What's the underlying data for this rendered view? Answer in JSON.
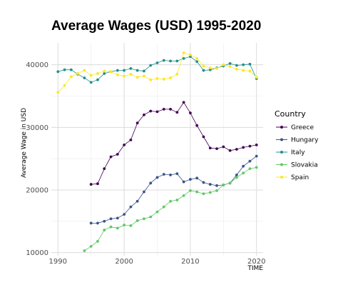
{
  "chart_data": {
    "type": "line",
    "title": "Average Wages (USD) 1995-2020",
    "xlabel": "TIME",
    "ylabel": "Average Wage in USD",
    "xlim": [
      1989,
      2021
    ],
    "ylim": [
      9500,
      43500
    ],
    "x_ticks": [
      1990,
      2000,
      2010,
      2020
    ],
    "x_tick_labels": [
      "1990",
      "2000",
      "2010",
      "2020"
    ],
    "y_ticks": [
      10000,
      20000,
      30000,
      40000
    ],
    "y_tick_labels": [
      "10000",
      "20000",
      "30000",
      "40000"
    ],
    "grid": true,
    "legend_title": "Country",
    "legend_position": "right",
    "series": [
      {
        "name": "Greece",
        "color": "#440154",
        "x": [
          1995,
          1996,
          1997,
          1998,
          1999,
          2000,
          2001,
          2002,
          2003,
          2004,
          2005,
          2006,
          2007,
          2008,
          2009,
          2010,
          2011,
          2012,
          2013,
          2014,
          2015,
          2016,
          2017,
          2018,
          2019,
          2020
        ],
        "y": [
          20900,
          21000,
          23400,
          25300,
          25700,
          27200,
          28000,
          30700,
          32000,
          32600,
          32500,
          32900,
          32900,
          32400,
          34000,
          32300,
          30300,
          28500,
          26700,
          26600,
          26900,
          26300,
          26500,
          26800,
          27000,
          27200
        ]
      },
      {
        "name": "Hungary",
        "color": "#3b528b",
        "x": [
          1995,
          1996,
          1997,
          1998,
          1999,
          2000,
          2001,
          2002,
          2003,
          2004,
          2005,
          2006,
          2007,
          2008,
          2009,
          2010,
          2011,
          2012,
          2013,
          2014,
          2015,
          2016,
          2017,
          2018,
          2019,
          2020
        ],
        "y": [
          14700,
          14700,
          15000,
          15400,
          15500,
          16100,
          17300,
          18200,
          19700,
          21100,
          22000,
          22500,
          22400,
          22600,
          21300,
          21700,
          21900,
          21200,
          20900,
          20700,
          20800,
          21100,
          22400,
          23800,
          24600,
          25400
        ]
      },
      {
        "name": "Italy",
        "color": "#21908d",
        "x": [
          1990,
          1991,
          1992,
          1993,
          1994,
          1995,
          1996,
          1997,
          1998,
          1999,
          2000,
          2001,
          2002,
          2003,
          2004,
          2005,
          2006,
          2007,
          2008,
          2009,
          2010,
          2011,
          2012,
          2013,
          2014,
          2015,
          2016,
          2017,
          2018,
          2019,
          2020
        ],
        "y": [
          38900,
          39200,
          39200,
          38500,
          37900,
          37200,
          37600,
          38600,
          38900,
          39100,
          39100,
          39400,
          39100,
          39000,
          39900,
          40300,
          40700,
          40600,
          40600,
          41000,
          41300,
          40500,
          39100,
          39200,
          39500,
          39800,
          40200,
          39900,
          40000,
          40100,
          37800
        ]
      },
      {
        "name": "Slovakia",
        "color": "#5dc963",
        "x": [
          1994,
          1995,
          1996,
          1997,
          1998,
          1999,
          2000,
          2001,
          2002,
          2003,
          2004,
          2005,
          2006,
          2007,
          2008,
          2009,
          2010,
          2011,
          2012,
          2013,
          2014,
          2015,
          2016,
          2017,
          2018,
          2019,
          2020
        ],
        "y": [
          10300,
          11000,
          11800,
          13600,
          14100,
          13900,
          14400,
          14300,
          15100,
          15400,
          15700,
          16500,
          17300,
          18200,
          18400,
          19100,
          19900,
          19700,
          19400,
          19600,
          19900,
          20800,
          21100,
          22000,
          22700,
          23400,
          23600
        ]
      },
      {
        "name": "Spain",
        "color": "#fde725",
        "x": [
          1990,
          1991,
          1992,
          1993,
          1994,
          1995,
          1996,
          1997,
          1998,
          1999,
          2000,
          2001,
          2002,
          2003,
          2004,
          2005,
          2006,
          2007,
          2008,
          2009,
          2010,
          2011,
          2012,
          2013,
          2014,
          2015,
          2016,
          2017,
          2018,
          2019,
          2020
        ],
        "y": [
          35600,
          36700,
          38100,
          38600,
          39100,
          38300,
          38600,
          39000,
          38900,
          38400,
          38200,
          38500,
          38000,
          38200,
          37600,
          37800,
          37700,
          37900,
          38500,
          41900,
          41600,
          41000,
          39800,
          39500,
          39400,
          40000,
          39700,
          39300,
          39100,
          39000,
          38000
        ]
      }
    ]
  }
}
